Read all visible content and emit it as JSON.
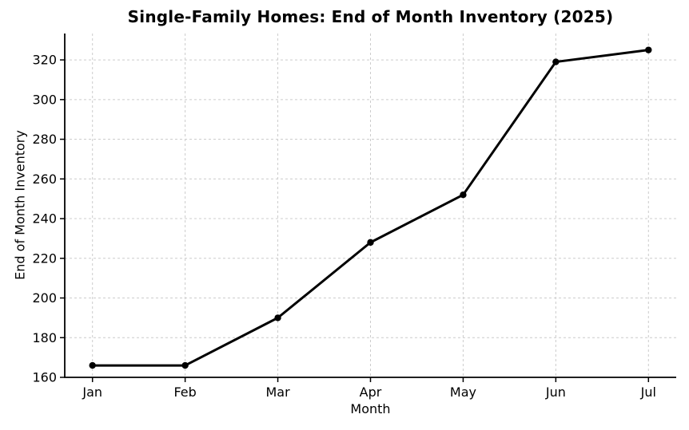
{
  "chart_data": {
    "type": "line",
    "title": "Single-Family Homes: End of Month Inventory (2025)",
    "xlabel": "Month",
    "ylabel": "End of Month Inventory",
    "categories": [
      "Jan",
      "Feb",
      "Mar",
      "Apr",
      "May",
      "Jun",
      "Jul"
    ],
    "series": [
      {
        "name": "End of Month Inventory",
        "values": [
          166,
          166,
          190,
          228,
          252,
          319,
          325
        ]
      }
    ],
    "yticks": [
      160,
      180,
      200,
      220,
      240,
      260,
      280,
      300,
      320
    ],
    "ylim": [
      160,
      333.3
    ],
    "grid": true,
    "grid_style": "dashed",
    "legend": "none",
    "colors": {
      "line": "#000000",
      "marker": "#000000",
      "grid": "#cccccc",
      "spine": "#000000",
      "text": "#000000",
      "background": "#ffffff"
    }
  }
}
